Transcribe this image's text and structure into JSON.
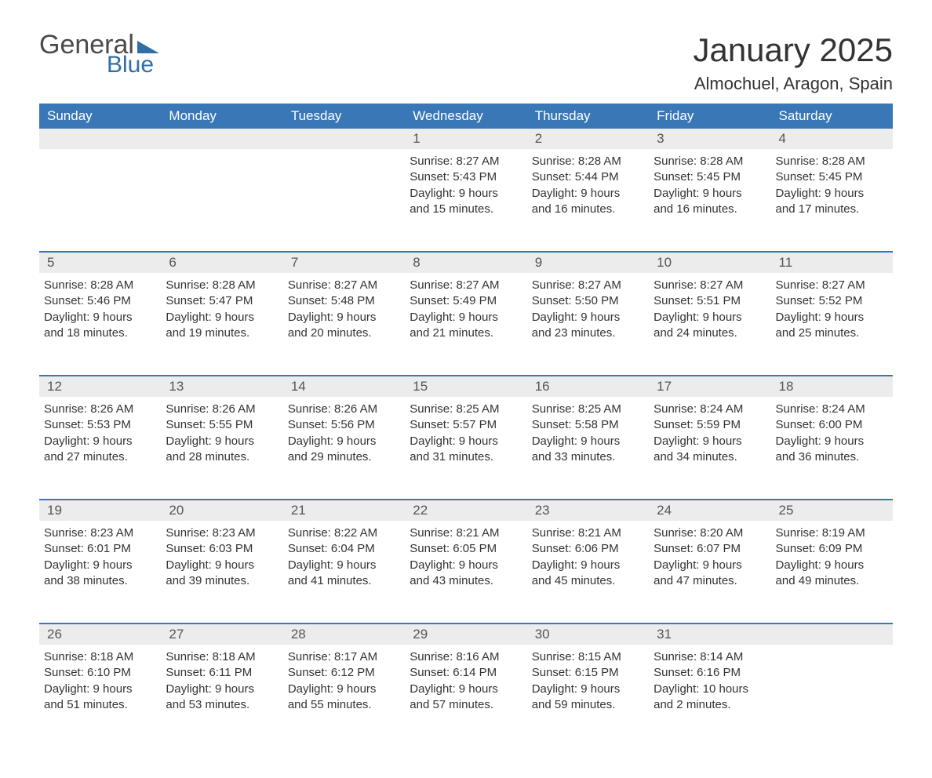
{
  "brand": {
    "word1": "General",
    "word2": "Blue",
    "color_primary": "#2f6fa7",
    "color_text": "#4a4a4a"
  },
  "title": "January 2025",
  "location": "Almochuel, Aragon, Spain",
  "colors": {
    "header_bg": "#3a77b7",
    "header_text": "#ffffff",
    "row_separator": "#3a77b7",
    "daynum_bg": "#ececec",
    "body_text": "#333333",
    "background": "#ffffff"
  },
  "typography": {
    "title_fontsize": 42,
    "location_fontsize": 22,
    "header_fontsize": 17,
    "daynum_fontsize": 17,
    "cell_fontsize": 15
  },
  "weekdays": [
    "Sunday",
    "Monday",
    "Tuesday",
    "Wednesday",
    "Thursday",
    "Friday",
    "Saturday"
  ],
  "weeks": [
    [
      null,
      null,
      null,
      {
        "n": "1",
        "sunrise": "Sunrise: 8:27 AM",
        "sunset": "Sunset: 5:43 PM",
        "day1": "Daylight: 9 hours",
        "day2": "and 15 minutes."
      },
      {
        "n": "2",
        "sunrise": "Sunrise: 8:28 AM",
        "sunset": "Sunset: 5:44 PM",
        "day1": "Daylight: 9 hours",
        "day2": "and 16 minutes."
      },
      {
        "n": "3",
        "sunrise": "Sunrise: 8:28 AM",
        "sunset": "Sunset: 5:45 PM",
        "day1": "Daylight: 9 hours",
        "day2": "and 16 minutes."
      },
      {
        "n": "4",
        "sunrise": "Sunrise: 8:28 AM",
        "sunset": "Sunset: 5:45 PM",
        "day1": "Daylight: 9 hours",
        "day2": "and 17 minutes."
      }
    ],
    [
      {
        "n": "5",
        "sunrise": "Sunrise: 8:28 AM",
        "sunset": "Sunset: 5:46 PM",
        "day1": "Daylight: 9 hours",
        "day2": "and 18 minutes."
      },
      {
        "n": "6",
        "sunrise": "Sunrise: 8:28 AM",
        "sunset": "Sunset: 5:47 PM",
        "day1": "Daylight: 9 hours",
        "day2": "and 19 minutes."
      },
      {
        "n": "7",
        "sunrise": "Sunrise: 8:27 AM",
        "sunset": "Sunset: 5:48 PM",
        "day1": "Daylight: 9 hours",
        "day2": "and 20 minutes."
      },
      {
        "n": "8",
        "sunrise": "Sunrise: 8:27 AM",
        "sunset": "Sunset: 5:49 PM",
        "day1": "Daylight: 9 hours",
        "day2": "and 21 minutes."
      },
      {
        "n": "9",
        "sunrise": "Sunrise: 8:27 AM",
        "sunset": "Sunset: 5:50 PM",
        "day1": "Daylight: 9 hours",
        "day2": "and 23 minutes."
      },
      {
        "n": "10",
        "sunrise": "Sunrise: 8:27 AM",
        "sunset": "Sunset: 5:51 PM",
        "day1": "Daylight: 9 hours",
        "day2": "and 24 minutes."
      },
      {
        "n": "11",
        "sunrise": "Sunrise: 8:27 AM",
        "sunset": "Sunset: 5:52 PM",
        "day1": "Daylight: 9 hours",
        "day2": "and 25 minutes."
      }
    ],
    [
      {
        "n": "12",
        "sunrise": "Sunrise: 8:26 AM",
        "sunset": "Sunset: 5:53 PM",
        "day1": "Daylight: 9 hours",
        "day2": "and 27 minutes."
      },
      {
        "n": "13",
        "sunrise": "Sunrise: 8:26 AM",
        "sunset": "Sunset: 5:55 PM",
        "day1": "Daylight: 9 hours",
        "day2": "and 28 minutes."
      },
      {
        "n": "14",
        "sunrise": "Sunrise: 8:26 AM",
        "sunset": "Sunset: 5:56 PM",
        "day1": "Daylight: 9 hours",
        "day2": "and 29 minutes."
      },
      {
        "n": "15",
        "sunrise": "Sunrise: 8:25 AM",
        "sunset": "Sunset: 5:57 PM",
        "day1": "Daylight: 9 hours",
        "day2": "and 31 minutes."
      },
      {
        "n": "16",
        "sunrise": "Sunrise: 8:25 AM",
        "sunset": "Sunset: 5:58 PM",
        "day1": "Daylight: 9 hours",
        "day2": "and 33 minutes."
      },
      {
        "n": "17",
        "sunrise": "Sunrise: 8:24 AM",
        "sunset": "Sunset: 5:59 PM",
        "day1": "Daylight: 9 hours",
        "day2": "and 34 minutes."
      },
      {
        "n": "18",
        "sunrise": "Sunrise: 8:24 AM",
        "sunset": "Sunset: 6:00 PM",
        "day1": "Daylight: 9 hours",
        "day2": "and 36 minutes."
      }
    ],
    [
      {
        "n": "19",
        "sunrise": "Sunrise: 8:23 AM",
        "sunset": "Sunset: 6:01 PM",
        "day1": "Daylight: 9 hours",
        "day2": "and 38 minutes."
      },
      {
        "n": "20",
        "sunrise": "Sunrise: 8:23 AM",
        "sunset": "Sunset: 6:03 PM",
        "day1": "Daylight: 9 hours",
        "day2": "and 39 minutes."
      },
      {
        "n": "21",
        "sunrise": "Sunrise: 8:22 AM",
        "sunset": "Sunset: 6:04 PM",
        "day1": "Daylight: 9 hours",
        "day2": "and 41 minutes."
      },
      {
        "n": "22",
        "sunrise": "Sunrise: 8:21 AM",
        "sunset": "Sunset: 6:05 PM",
        "day1": "Daylight: 9 hours",
        "day2": "and 43 minutes."
      },
      {
        "n": "23",
        "sunrise": "Sunrise: 8:21 AM",
        "sunset": "Sunset: 6:06 PM",
        "day1": "Daylight: 9 hours",
        "day2": "and 45 minutes."
      },
      {
        "n": "24",
        "sunrise": "Sunrise: 8:20 AM",
        "sunset": "Sunset: 6:07 PM",
        "day1": "Daylight: 9 hours",
        "day2": "and 47 minutes."
      },
      {
        "n": "25",
        "sunrise": "Sunrise: 8:19 AM",
        "sunset": "Sunset: 6:09 PM",
        "day1": "Daylight: 9 hours",
        "day2": "and 49 minutes."
      }
    ],
    [
      {
        "n": "26",
        "sunrise": "Sunrise: 8:18 AM",
        "sunset": "Sunset: 6:10 PM",
        "day1": "Daylight: 9 hours",
        "day2": "and 51 minutes."
      },
      {
        "n": "27",
        "sunrise": "Sunrise: 8:18 AM",
        "sunset": "Sunset: 6:11 PM",
        "day1": "Daylight: 9 hours",
        "day2": "and 53 minutes."
      },
      {
        "n": "28",
        "sunrise": "Sunrise: 8:17 AM",
        "sunset": "Sunset: 6:12 PM",
        "day1": "Daylight: 9 hours",
        "day2": "and 55 minutes."
      },
      {
        "n": "29",
        "sunrise": "Sunrise: 8:16 AM",
        "sunset": "Sunset: 6:14 PM",
        "day1": "Daylight: 9 hours",
        "day2": "and 57 minutes."
      },
      {
        "n": "30",
        "sunrise": "Sunrise: 8:15 AM",
        "sunset": "Sunset: 6:15 PM",
        "day1": "Daylight: 9 hours",
        "day2": "and 59 minutes."
      },
      {
        "n": "31",
        "sunrise": "Sunrise: 8:14 AM",
        "sunset": "Sunset: 6:16 PM",
        "day1": "Daylight: 10 hours",
        "day2": "and 2 minutes."
      },
      null
    ]
  ]
}
